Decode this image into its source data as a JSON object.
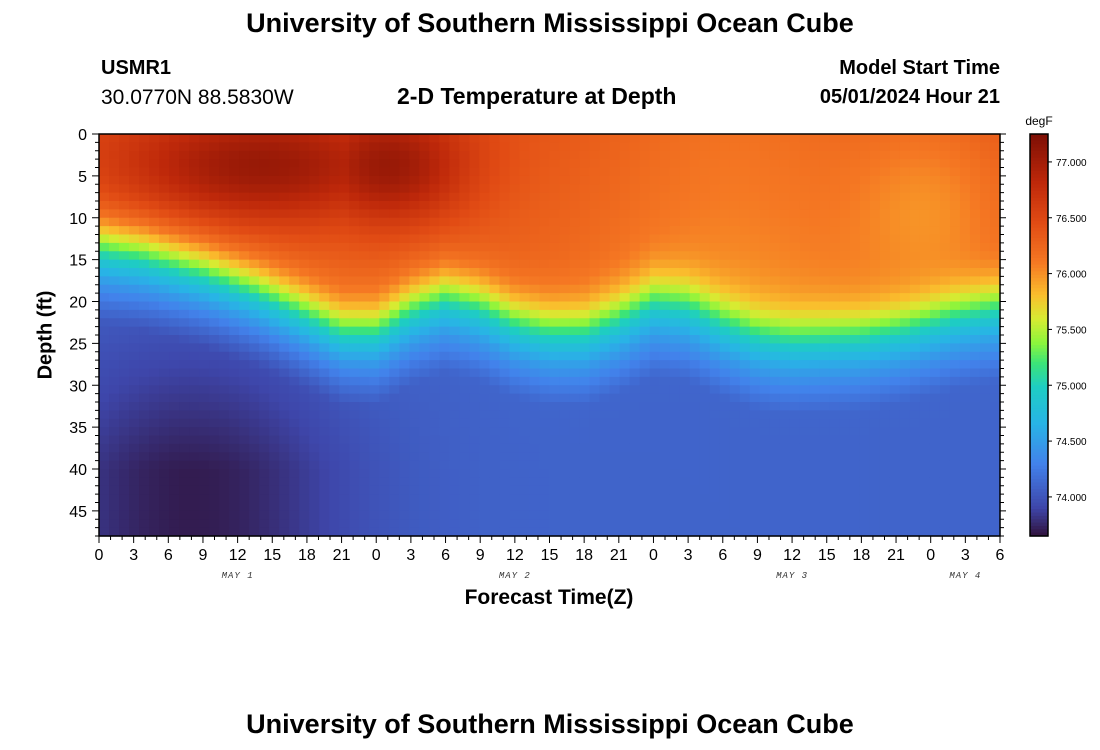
{
  "header": {
    "title_top": "University of Southern Mississippi Ocean Cube",
    "title_bottom": "University of Southern Mississippi Ocean Cube",
    "station_id": "USMR1",
    "coordinates": "30.0770N  88.5830W",
    "subtitle": "2-D Temperature at Depth",
    "model_start_label": "Model Start Time",
    "model_start_value": "05/01/2024 Hour 21"
  },
  "chart_data": {
    "type": "heatmap",
    "title": "2-D Temperature at Depth",
    "xlabel": "Forecast Time(Z)",
    "ylabel": "Depth (ft)",
    "x_ticks": [
      "0",
      "3",
      "6",
      "9",
      "12",
      "15",
      "18",
      "21",
      "0",
      "3",
      "6",
      "9",
      "12",
      "15",
      "18",
      "21",
      "0",
      "3",
      "6",
      "9",
      "12",
      "15",
      "18",
      "21",
      "0",
      "3",
      "6"
    ],
    "x_range_hours": [
      0,
      78
    ],
    "y_ticks": [
      0,
      5,
      10,
      15,
      20,
      25,
      30,
      35,
      40,
      45
    ],
    "y_range_ft": [
      0,
      48
    ],
    "date_labels": [
      {
        "label": "MAY 1",
        "hour": 12
      },
      {
        "label": "MAY 2",
        "hour": 36
      },
      {
        "label": "MAY 3",
        "hour": 60
      },
      {
        "label": "MAY 4",
        "hour": 75
      }
    ],
    "colorbar": {
      "unit": "degF",
      "min": 73.65,
      "max": 77.25,
      "ticks": [
        "74.000",
        "74.500",
        "75.000",
        "75.500",
        "76.000",
        "76.500",
        "77.000"
      ]
    },
    "thermocline_depth_ft": [
      {
        "hour": 0,
        "depth": 12.5
      },
      {
        "hour": 4,
        "depth": 13.5
      },
      {
        "hour": 9,
        "depth": 15.5
      },
      {
        "hour": 14,
        "depth": 18.0
      },
      {
        "hour": 18,
        "depth": 20.5
      },
      {
        "hour": 21,
        "depth": 22.5
      },
      {
        "hour": 24,
        "depth": 22.5
      },
      {
        "hour": 27,
        "depth": 20.0
      },
      {
        "hour": 30,
        "depth": 18.5
      },
      {
        "hour": 33,
        "depth": 19.5
      },
      {
        "hour": 36,
        "depth": 21.5
      },
      {
        "hour": 39,
        "depth": 22.5
      },
      {
        "hour": 42,
        "depth": 22.5
      },
      {
        "hour": 45,
        "depth": 21.0
      },
      {
        "hour": 48,
        "depth": 19.0
      },
      {
        "hour": 51,
        "depth": 19.5
      },
      {
        "hour": 54,
        "depth": 21.5
      },
      {
        "hour": 57,
        "depth": 23.0
      },
      {
        "hour": 60,
        "depth": 23.5
      },
      {
        "hour": 66,
        "depth": 23.0
      },
      {
        "hour": 70,
        "depth": 22.0
      },
      {
        "hour": 74,
        "depth": 20.5
      },
      {
        "hour": 78,
        "depth": 19.5
      }
    ],
    "surface_temp_degF": 76.4,
    "surface_temp_peak_degF": 77.1,
    "bottom_temp_degF": 74.1,
    "bottom_temp_min_degF": 73.7
  }
}
